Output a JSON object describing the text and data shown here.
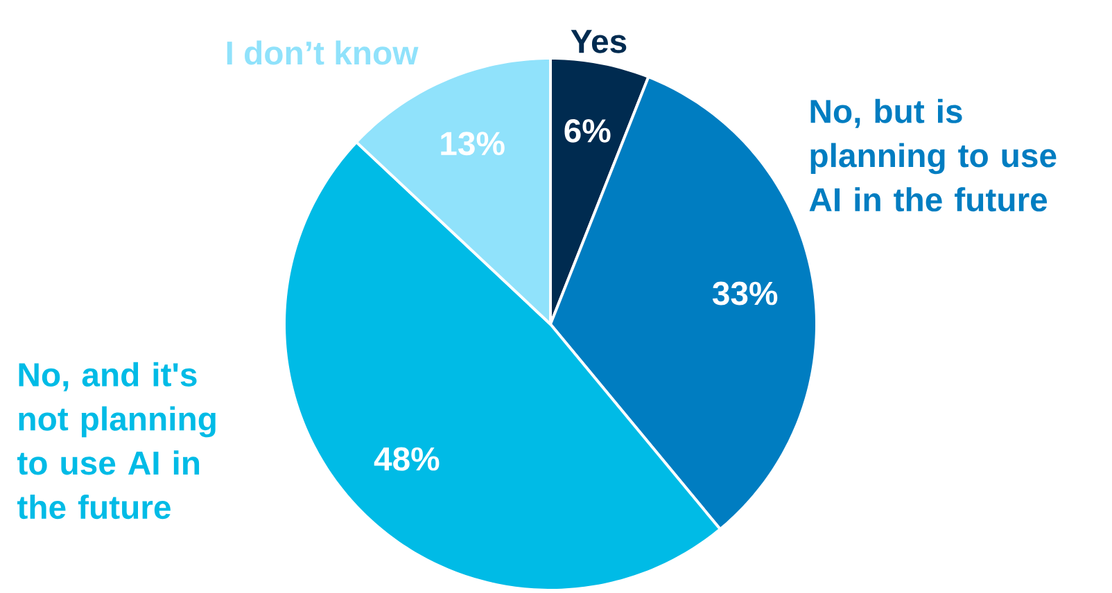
{
  "chart_data": {
    "type": "pie",
    "categories": [
      "Yes",
      "No, but is planning to use AI in the future",
      "No, and it's not planning to use AI in the future",
      "I don’t know"
    ],
    "values": [
      6,
      33,
      48,
      13
    ],
    "colors": [
      "#002b50",
      "#007dc1",
      "#00bbe6",
      "#90e2fb"
    ],
    "value_labels": [
      "6%",
      "33%",
      "48%",
      "13%"
    ]
  }
}
